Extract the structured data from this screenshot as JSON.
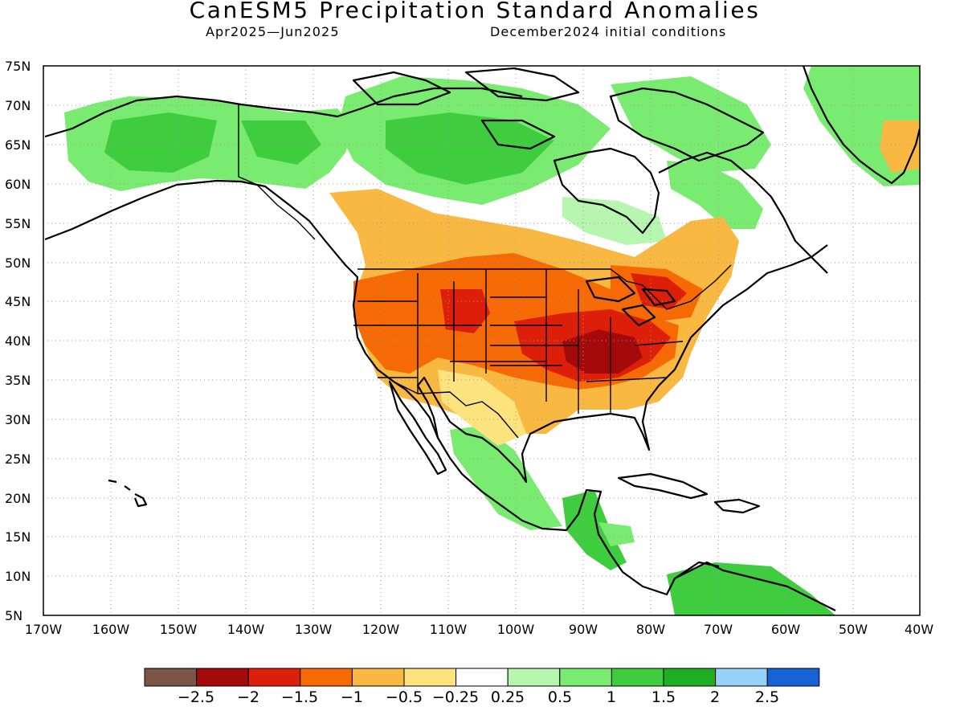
{
  "title": "CanESM5 Precipitation Standard Anomalies",
  "period": "Apr2025—Jun2025",
  "init_conditions": "December2024 initial conditions",
  "lat_labels": [
    "75N",
    "70N",
    "65N",
    "60N",
    "55N",
    "50N",
    "45N",
    "40N",
    "35N",
    "30N",
    "25N",
    "20N",
    "15N",
    "10N",
    "5N"
  ],
  "lon_labels": [
    "170W",
    "160W",
    "150W",
    "140W",
    "130W",
    "120W",
    "110W",
    "100W",
    "90W",
    "80W",
    "70W",
    "60W",
    "50W",
    "40W"
  ],
  "colorbar": {
    "colors": [
      "#7b5545",
      "#a50a0a",
      "#dd1f0a",
      "#f66a05",
      "#f9b842",
      "#fde37d",
      "#ffffff",
      "#b6f6ae",
      "#78eb70",
      "#3fcd3f",
      "#1fae22",
      "#96d1fa",
      "#1763d5"
    ],
    "labels": [
      "−2.5",
      "−2",
      "−1.5",
      "−1",
      "−0.5",
      "−0.25",
      "0.25",
      "0.5",
      "1",
      "1.5",
      "2",
      "2.5"
    ]
  }
}
